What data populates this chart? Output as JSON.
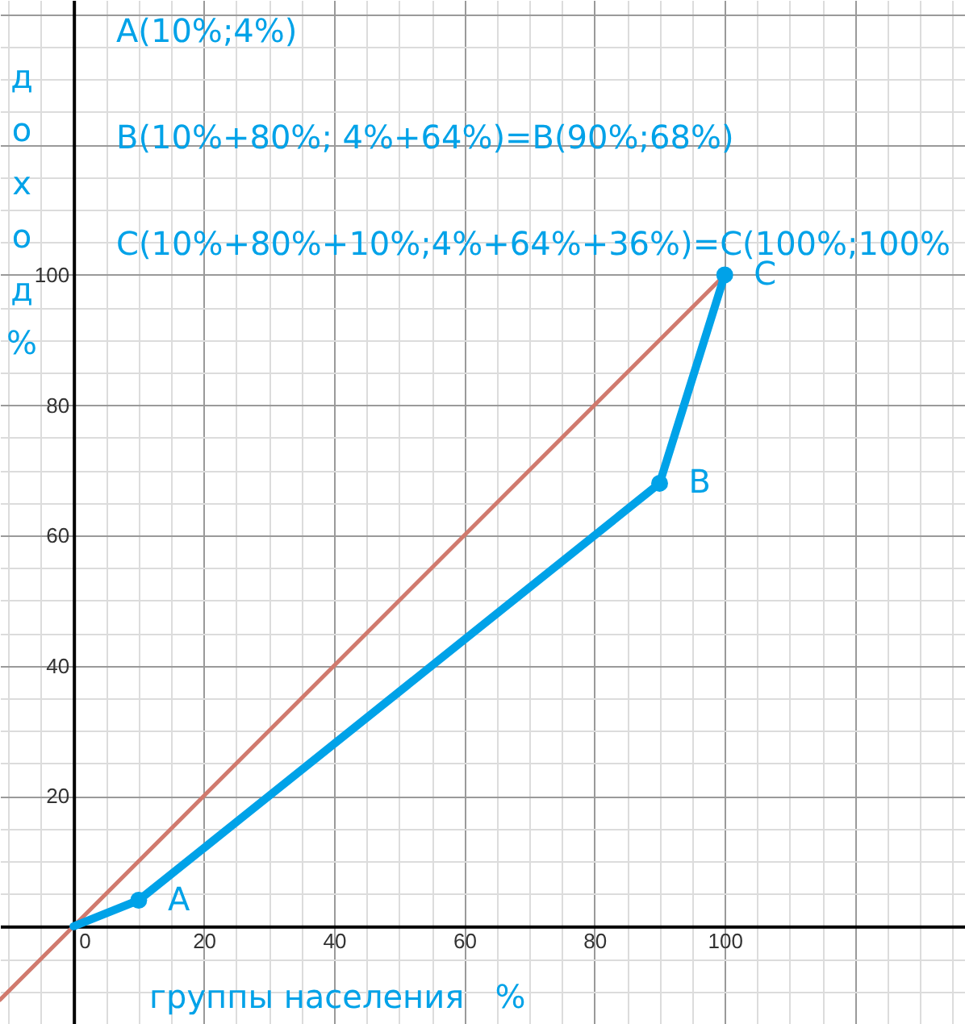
{
  "chart_data": {
    "type": "line",
    "xlabel": "группы населения   %",
    "ylabel": "доход %",
    "xlim": [
      -11.3,
      136.9
    ],
    "ylim": [
      -15,
      142.2
    ],
    "xticks": [
      {
        "value": -10,
        "label": null
      },
      {
        "value": -5,
        "label": null
      },
      0,
      {
        "value": 5,
        "label": null
      },
      {
        "value": 10,
        "label": null
      },
      {
        "value": 15,
        "label": null
      },
      20,
      {
        "value": 25,
        "label": null
      },
      {
        "value": 30,
        "label": null
      },
      {
        "value": 35,
        "label": null
      },
      40,
      {
        "value": 45,
        "label": null
      },
      {
        "value": 50,
        "label": null
      },
      {
        "value": 55,
        "label": null
      },
      60,
      {
        "value": 65,
        "label": null
      },
      {
        "value": 70,
        "label": null
      },
      {
        "value": 75,
        "label": null
      },
      80,
      {
        "value": 85,
        "label": null
      },
      {
        "value": 90,
        "label": null
      },
      {
        "value": 95,
        "label": null
      },
      100,
      {
        "value": 105,
        "label": null
      },
      {
        "value": 110,
        "label": null
      },
      {
        "value": 115,
        "label": null
      },
      {
        "value": 120,
        "label": null
      },
      {
        "value": 125,
        "label": null
      },
      {
        "value": 130,
        "label": null
      },
      {
        "value": 135,
        "label": null
      }
    ],
    "yticks": [
      {
        "value": -15,
        "label": null
      },
      {
        "value": -10,
        "label": null
      },
      {
        "value": -5,
        "label": null
      },
      {
        "value": 0,
        "label": null
      },
      {
        "value": 5,
        "label": null
      },
      {
        "value": 10,
        "label": null
      },
      {
        "value": 15,
        "label": null
      },
      20,
      {
        "value": 25,
        "label": null
      },
      {
        "value": 30,
        "label": null
      },
      {
        "value": 35,
        "label": null
      },
      40,
      {
        "value": 45,
        "label": null
      },
      {
        "value": 50,
        "label": null
      },
      {
        "value": 55,
        "label": null
      },
      60,
      {
        "value": 65,
        "label": null
      },
      {
        "value": 70,
        "label": null
      },
      {
        "value": 75,
        "label": null
      },
      80,
      {
        "value": 85,
        "label": null
      },
      {
        "value": 90,
        "label": null
      },
      {
        "value": 95,
        "label": null
      },
      100,
      {
        "value": 105,
        "label": null
      },
      {
        "value": 110,
        "label": null
      },
      {
        "value": 115,
        "label": null
      },
      {
        "value": 120,
        "label": null
      },
      {
        "value": 125,
        "label": null
      },
      {
        "value": 130,
        "label": null
      },
      {
        "value": 135,
        "label": null
      },
      {
        "value": 140,
        "label": null
      }
    ],
    "grid": true,
    "series": [
      {
        "color": "#d07a6e",
        "x": [
          -11.3,
          100
        ],
        "values": [
          -11.3,
          100
        ]
      },
      {
        "color": "#00a2e8",
        "x": [
          0,
          10,
          90,
          100
        ],
        "values": [
          0,
          4,
          68,
          100
        ]
      },
      {
        "type": "scatter",
        "color": "#00a2e8",
        "x": [
          10,
          90,
          100
        ],
        "values": [
          4,
          68,
          100
        ],
        "marker": "circle"
      }
    ],
    "annotations": [
      "A(10%;4%)",
      "B(10%+80%; 4%+64%)=B(90%;68%)",
      "C(10%+80%+10%;4%+64%+36%)=C(100%;100%",
      {
        "text": "A",
        "x": 10,
        "y": 4
      },
      {
        "text": "B",
        "x": 90,
        "y": 68
      },
      {
        "text": "C",
        "x": 100,
        "y": 100
      }
    ]
  }
}
